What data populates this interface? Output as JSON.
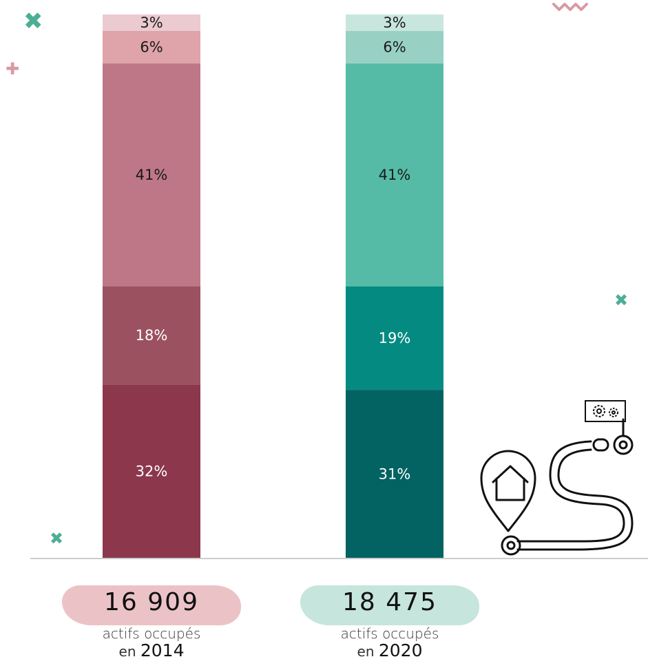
{
  "chart_data": {
    "type": "bar",
    "stacked": true,
    "categories": [
      "2014",
      "2020"
    ],
    "segments": [
      {
        "column": "2014",
        "values": [
          32,
          18,
          41,
          6,
          3
        ],
        "labels": [
          "32%",
          "18%",
          "41%",
          "6%",
          "3%"
        ],
        "colors": [
          "#8c374c",
          "#9c5160",
          "#be7786",
          "#dfa3aa",
          "#ebcbd0"
        ],
        "label_colors": [
          "#ffffff",
          "#ffffff",
          "#1a1a1a",
          "#1a1a1a",
          "#1a1a1a"
        ]
      },
      {
        "column": "2020",
        "values": [
          31,
          19,
          41,
          6,
          3
        ],
        "labels": [
          "31%",
          "19%",
          "41%",
          "6%",
          "3%"
        ],
        "colors": [
          "#036262",
          "#058a82",
          "#56bba6",
          "#98d1c4",
          "#c9e6de"
        ],
        "label_colors": [
          "#ffffff",
          "#ffffff",
          "#1a1a1a",
          "#1a1a1a",
          "#1a1a1a"
        ]
      }
    ],
    "ylim": [
      0,
      100
    ]
  },
  "totals": [
    {
      "number": "16 909",
      "caption": "actifs occupés",
      "prefix": "en",
      "year": "2014",
      "blob_color": "#ebc3c6"
    },
    {
      "number": "18 475",
      "caption": "actifs occupés",
      "prefix": "en",
      "year": "2020",
      "blob_color": "#c6e5dc"
    }
  ],
  "colors": {
    "axis": "#cccccc",
    "deco_teal": "#4dae96",
    "deco_pink": "#d99aa3",
    "icon_stroke": "#111111"
  },
  "icons": [
    "cross-icon",
    "plus-icon",
    "wave-icon",
    "home-location-icon",
    "road-path-icon",
    "gears-sign-icon"
  ]
}
